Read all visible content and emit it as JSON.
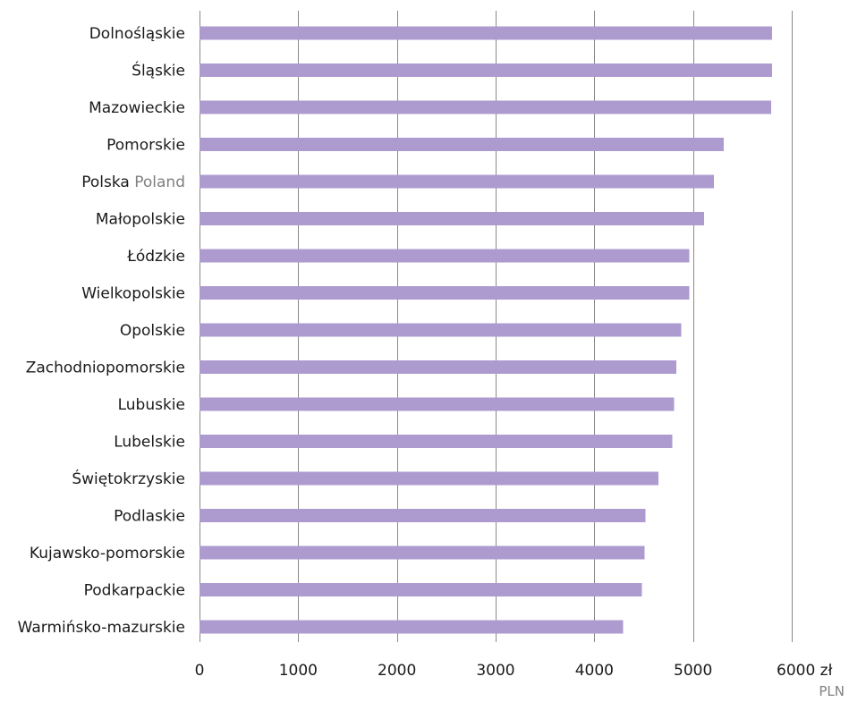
{
  "chart_data": {
    "type": "bar",
    "orientation": "horizontal",
    "categories": [
      {
        "label": "Dolnośląskie",
        "label_secondary": ""
      },
      {
        "label": "Śląskie",
        "label_secondary": ""
      },
      {
        "label": "Mazowieckie",
        "label_secondary": ""
      },
      {
        "label": "Pomorskie",
        "label_secondary": ""
      },
      {
        "label": "Polska",
        "label_secondary": "Poland"
      },
      {
        "label": "Małopolskie",
        "label_secondary": ""
      },
      {
        "label": "Łódzkie",
        "label_secondary": ""
      },
      {
        "label": "Wielkopolskie",
        "label_secondary": ""
      },
      {
        "label": "Opolskie",
        "label_secondary": ""
      },
      {
        "label": "Zachodniopomorskie",
        "label_secondary": ""
      },
      {
        "label": "Lubuskie",
        "label_secondary": ""
      },
      {
        "label": "Lubelskie",
        "label_secondary": ""
      },
      {
        "label": "Świętokrzyskie",
        "label_secondary": ""
      },
      {
        "label": "Podlaskie",
        "label_secondary": ""
      },
      {
        "label": "Kujawsko-pomorskie",
        "label_secondary": ""
      },
      {
        "label": "Podkarpackie",
        "label_secondary": ""
      },
      {
        "label": "Warmińsko-mazurskie",
        "label_secondary": ""
      }
    ],
    "values": [
      5800,
      5800,
      5790,
      5310,
      5210,
      5110,
      4960,
      4960,
      4880,
      4830,
      4810,
      4790,
      4650,
      4520,
      4510,
      4480,
      4290
    ],
    "xlim": [
      0,
      6000
    ],
    "xticks": [
      {
        "value": 0,
        "label": "0"
      },
      {
        "value": 1000,
        "label": "1000"
      },
      {
        "value": 2000,
        "label": "2000"
      },
      {
        "value": 3000,
        "label": "3000"
      },
      {
        "value": 4000,
        "label": "4000"
      },
      {
        "value": 5000,
        "label": "5000"
      },
      {
        "value": 6000,
        "label": "6000 zł"
      }
    ],
    "unit_label": "PLN",
    "grid": true,
    "legend": "none",
    "title": "",
    "xlabel": "",
    "ylabel": ""
  },
  "colors": {
    "bar": "#ad9bd0",
    "gridline": "#8a8a8a",
    "text": "#1a1a1a",
    "secondary_text": "#808080"
  }
}
